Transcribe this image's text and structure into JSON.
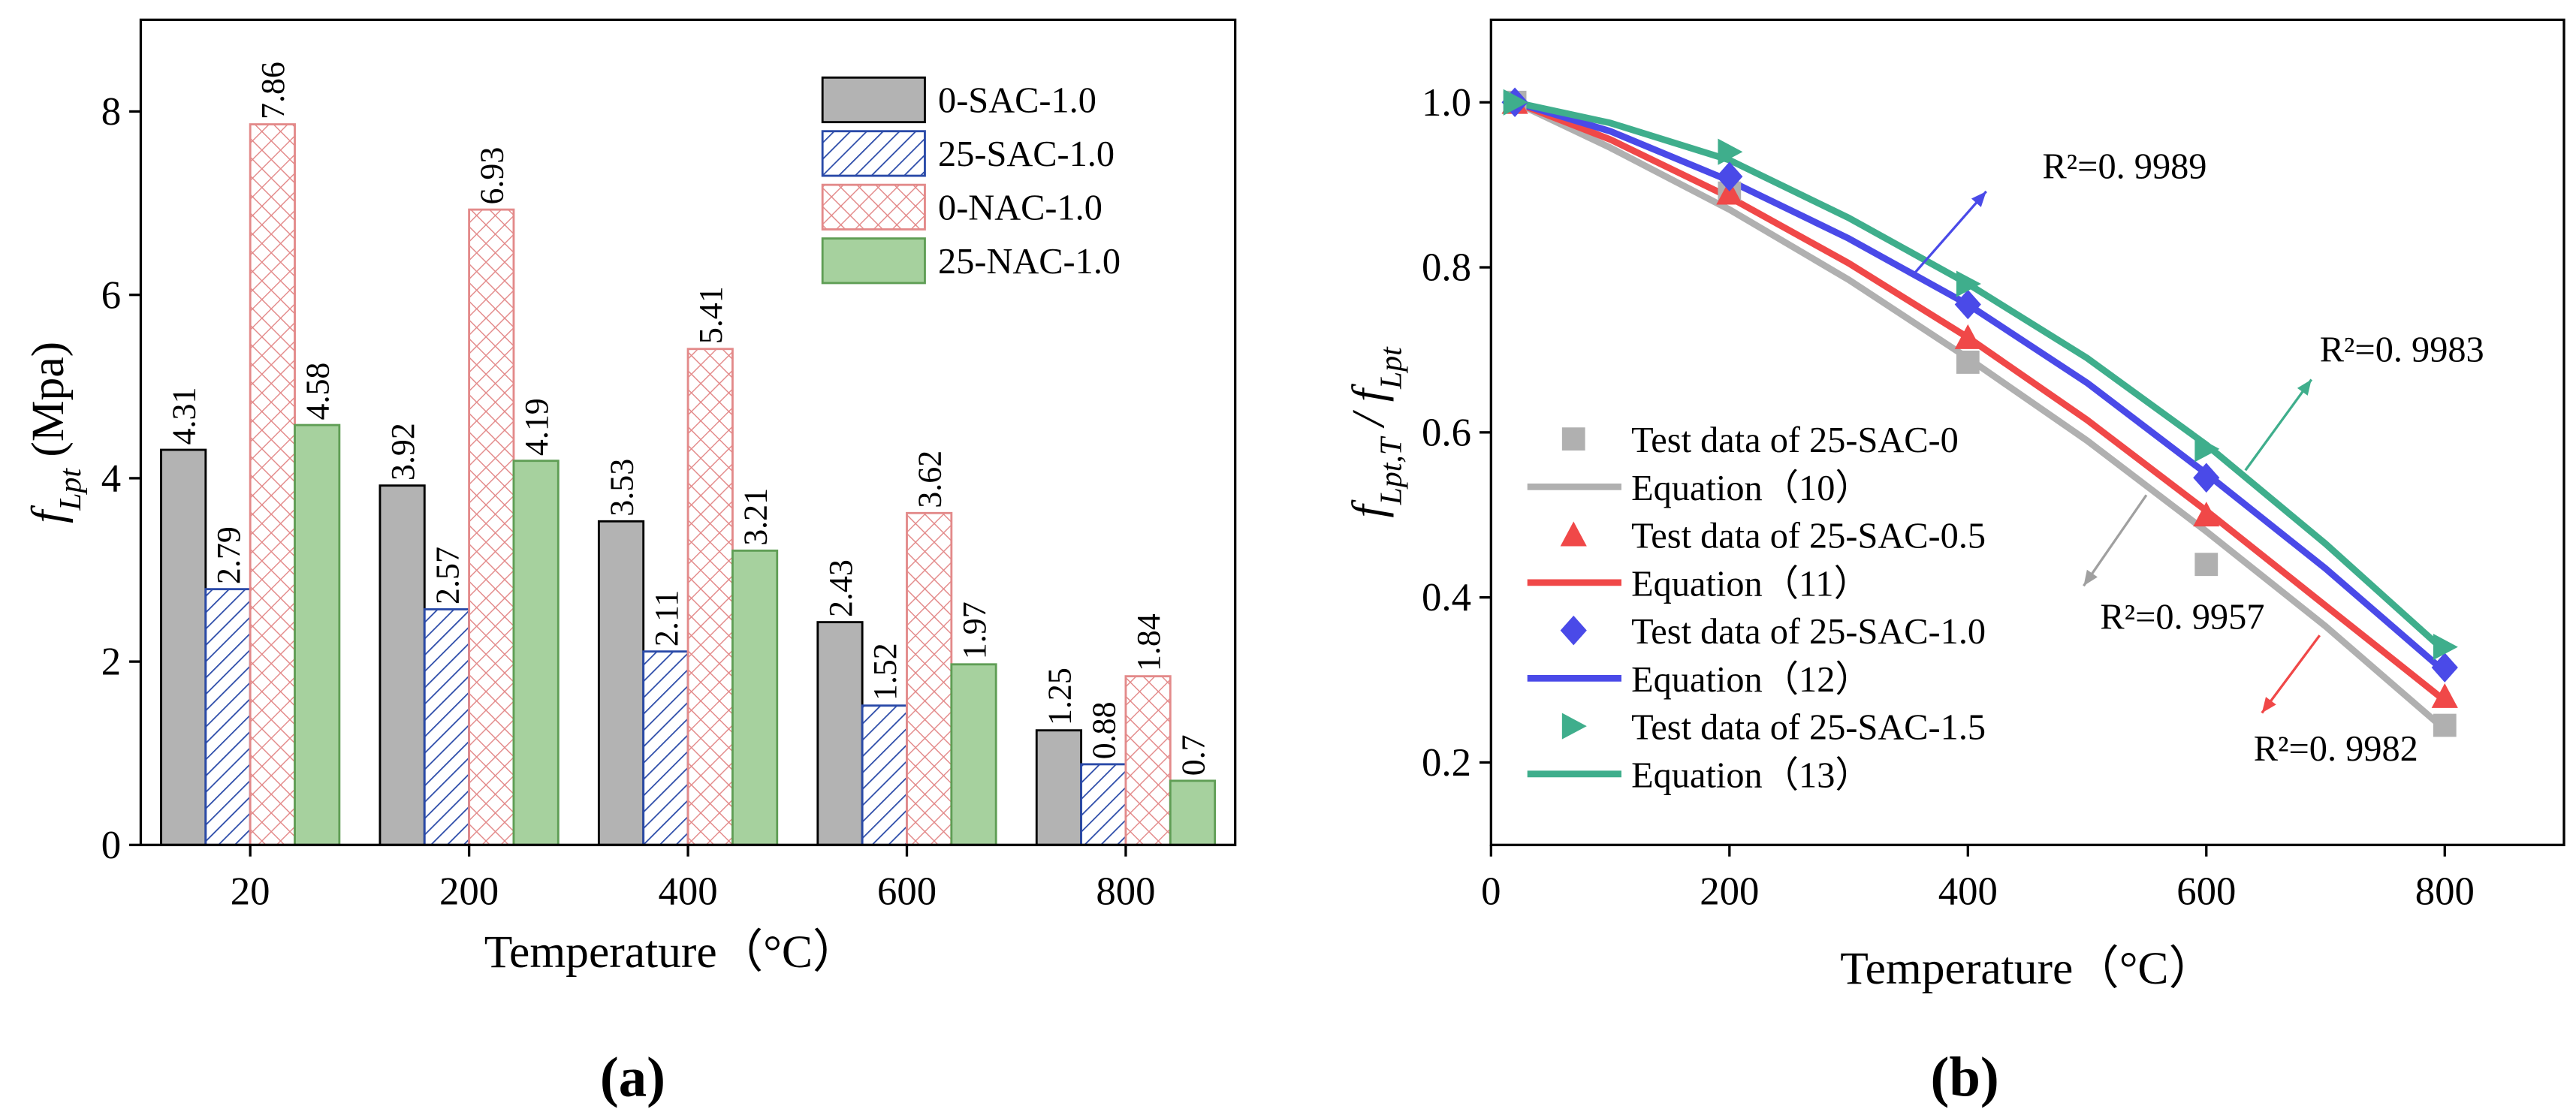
{
  "chart_data": [
    {
      "type": "bar",
      "caption": "(a)",
      "x_label": "Temperature（°C）",
      "y_label": [
        {
          "text": "f",
          "style": "italic"
        },
        {
          "text": "Lpt",
          "style": "italic-sub"
        },
        {
          "text": " (Mpa)",
          "style": "normal"
        }
      ],
      "categories": [
        "20",
        "200",
        "400",
        "600",
        "800"
      ],
      "series": [
        {
          "name": "0-SAC-1.0",
          "color": "#b3b3b3",
          "stroke": "#000000",
          "pattern": "solid",
          "values": [
            4.31,
            3.92,
            3.53,
            2.43,
            1.25
          ]
        },
        {
          "name": "25-SAC-1.0",
          "color": "#2a4aa8",
          "stroke": "#2a4aa8",
          "pattern": "hatch",
          "values": [
            2.79,
            2.57,
            2.11,
            1.52,
            0.88
          ]
        },
        {
          "name": "0-NAC-1.0",
          "color": "#e38a8a",
          "stroke": "#e38a8a",
          "pattern": "crosshatch",
          "values": [
            7.86,
            6.93,
            5.41,
            3.62,
            1.84
          ]
        },
        {
          "name": "25-NAC-1.0",
          "color": "#a6d19e",
          "stroke": "#5f9e55",
          "pattern": "solid",
          "values": [
            4.58,
            4.19,
            3.21,
            1.97,
            0.7
          ]
        }
      ],
      "ylim": [
        0,
        9
      ],
      "yticks": [
        0,
        2,
        4,
        6,
        8
      ],
      "legend": "upper right"
    },
    {
      "type": "line",
      "caption": "(b)",
      "x_label": "Temperature（°C）",
      "y_label": [
        {
          "text": "f",
          "style": "italic"
        },
        {
          "text": "Lpt,T",
          "style": "italic-sub"
        },
        {
          "text": " / ",
          "style": "italic"
        },
        {
          "text": "f",
          "style": "italic"
        },
        {
          "text": "Lpt",
          "style": "italic-sub"
        }
      ],
      "series": [
        {
          "name": "Test data of 25-SAC-0",
          "color": "#b0b0b0",
          "marker": "square",
          "x": [
            20,
            200,
            400,
            600,
            800
          ],
          "values": [
            1.0,
            0.89,
            0.685,
            0.44,
            0.245
          ]
        },
        {
          "name": "Equation（10）",
          "color": "#b0b0b0",
          "marker": "none",
          "x": [
            20,
            100,
            200,
            300,
            400,
            500,
            600,
            700,
            800
          ],
          "values": [
            1.0,
            0.945,
            0.87,
            0.785,
            0.69,
            0.59,
            0.48,
            0.365,
            0.24
          ]
        },
        {
          "name": "Test data of 25-SAC-0.5",
          "color": "#f04848",
          "marker": "triangle-up",
          "x": [
            20,
            200,
            400,
            600,
            800
          ],
          "values": [
            1.0,
            0.89,
            0.715,
            0.5,
            0.28
          ]
        },
        {
          "name": "Equation（11）",
          "color": "#f04848",
          "marker": "none",
          "x": [
            20,
            100,
            200,
            300,
            400,
            500,
            600,
            700,
            800
          ],
          "values": [
            1.0,
            0.955,
            0.885,
            0.805,
            0.715,
            0.615,
            0.505,
            0.39,
            0.275
          ]
        },
        {
          "name": "Test data of 25-SAC-1.0",
          "color": "#4a4ae8",
          "marker": "diamond",
          "x": [
            20,
            200,
            400,
            600,
            800
          ],
          "values": [
            1.0,
            0.91,
            0.755,
            0.545,
            0.315
          ]
        },
        {
          "name": "Equation（12）",
          "color": "#4a4ae8",
          "marker": "none",
          "x": [
            20,
            100,
            200,
            300,
            400,
            500,
            600,
            700,
            800
          ],
          "values": [
            1.0,
            0.965,
            0.905,
            0.835,
            0.755,
            0.66,
            0.55,
            0.435,
            0.31
          ]
        },
        {
          "name": "Test data of 25-SAC-1.5",
          "color": "#3fae8c",
          "marker": "triangle-right",
          "x": [
            20,
            200,
            400,
            600,
            800
          ],
          "values": [
            1.0,
            0.94,
            0.78,
            0.58,
            0.34
          ]
        },
        {
          "name": "Equation（13）",
          "color": "#3fae8c",
          "marker": "none",
          "x": [
            20,
            100,
            200,
            300,
            400,
            500,
            600,
            700,
            800
          ],
          "values": [
            1.0,
            0.975,
            0.93,
            0.86,
            0.78,
            0.69,
            0.585,
            0.465,
            0.335
          ]
        }
      ],
      "annotations": [
        {
          "text": "R²=0. 9989",
          "color": "#4a4ae8"
        },
        {
          "text": "R²=0. 9983",
          "color": "#3fae8c"
        },
        {
          "text": "R²=0. 9957",
          "color": "#a0a0a0"
        },
        {
          "text": "R²=0. 9982",
          "color": "#f04848"
        }
      ],
      "xlim": [
        0,
        900
      ],
      "xticks": [
        0,
        200,
        400,
        600,
        800
      ],
      "ylim": [
        0.1,
        1.1
      ],
      "yticks": [
        0.2,
        0.4,
        0.6,
        0.8,
        {
          "value": 1,
          "label": "1.0"
        }
      ],
      "legend": "lower left"
    }
  ]
}
